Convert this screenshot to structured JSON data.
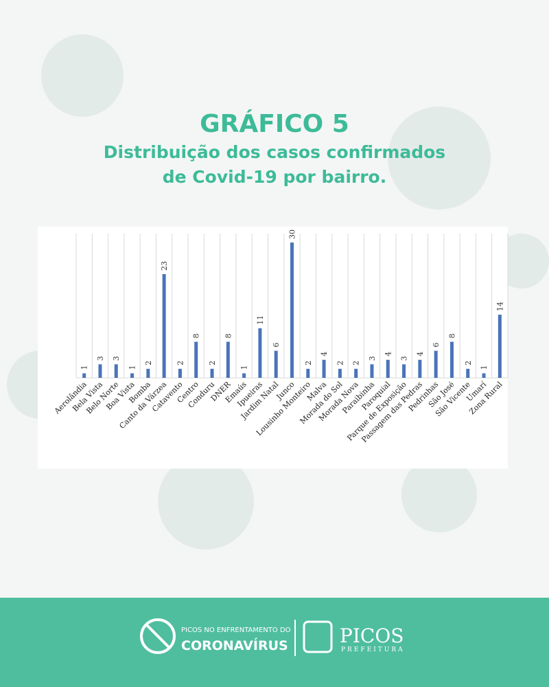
{
  "chart_data": {
    "type": "bar",
    "title": "GRÁFICO 5",
    "subtitle": [
      "Distribuição dos casos confirmados",
      "de Covid-19 por bairro."
    ],
    "categories": [
      "Aerolândia",
      "Bela Vista",
      "Belo Norte",
      "Boa Vista",
      "Bomba",
      "Canto da Várzea",
      "Catavento",
      "Centro",
      "Conduru",
      "DNER",
      "Emaús",
      "Ipueiras",
      "Jardim Natal",
      "Junco",
      "Lousinho Monteiro",
      "Malva",
      "Morada do Sol",
      "Morada Nova",
      "Paraibinha",
      "Paroquial",
      "Parque de Exposição",
      "Passagem das Pedras",
      "Pedrinhas",
      "São José",
      "São Vicente",
      "Umarí",
      "Zona Rural"
    ],
    "values": [
      1,
      3,
      3,
      1,
      2,
      23,
      2,
      8,
      2,
      8,
      1,
      11,
      6,
      30,
      2,
      4,
      2,
      2,
      3,
      4,
      3,
      4,
      6,
      8,
      2,
      1,
      14
    ],
    "color": "#4a74b8",
    "ylim": [
      0,
      30
    ],
    "grid": true
  },
  "footer": {
    "campaign_top": "PICOS NO ENFRENTAMENTO DO",
    "campaign_main": "CORONAVÍRUS",
    "city": "PICOS",
    "city_sub": "PREFEITURA"
  }
}
